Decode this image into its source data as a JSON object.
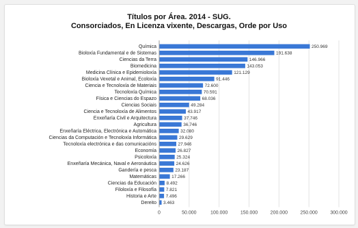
{
  "chart_data": {
    "type": "bar",
    "orientation": "horizontal",
    "title": "Títulos por Área. 2014 - SUG.",
    "subtitle": "Consorciados, En Licenza vixente, Descargas, Orde por Uso",
    "bar_color": "#3a78d6",
    "grid": true,
    "xlim": [
      0,
      300000
    ],
    "xticks": [
      "0",
      "50.000",
      "100.000",
      "150.000",
      "200.000",
      "250.000",
      "300.000"
    ],
    "categories": [
      "Química",
      "Bioloxía Fundamental e de Sistemas",
      "Ciencias da Terra",
      "Biomedicina",
      "Medicina Clínica e Epidemioloxía",
      "Bioloxía Vexetal e Animal, Ecoloxía",
      "Ciencia e Tecnoloxía de Materiais",
      "Tecnoloxía Química",
      "Física e Ciencias do Espazo",
      "Ciencias Sociais",
      "Ciencia e Tecnoloxía de Alimentos",
      "Enxeñaría Civil e Arquitectura",
      "Agricultura",
      "Enxeñaría Eléctrica, Electrónica e Automática",
      "Ciencias da Computación e Tecnoloxía Informática",
      "Tecnoloxía electrónica e das comunicacións",
      "Economía",
      "Psicoloxía",
      "Enxeñaría Mecánica, Naval e Aeronáutica",
      "Gandería e pesca",
      "Matemáticas",
      "Ciencias da Educación",
      "Filoloxía e Filosofía",
      "Historia e Arte",
      "Dereito"
    ],
    "values": [
      250969,
      191638,
      146966,
      143053,
      121129,
      91446,
      72600,
      70591,
      68036,
      49284,
      43917,
      37746,
      36746,
      32080,
      29629,
      27946,
      26827,
      25324,
      24626,
      23187,
      17266,
      8492,
      7821,
      7496,
      3463
    ],
    "value_labels": [
      "250.969",
      "191.638",
      "146.966",
      "143.053",
      "121.129",
      "91.446",
      "72.600",
      "70.591",
      "68.036",
      "49.284",
      "43.917",
      "37.746",
      "36.746",
      "32.080",
      "29.629",
      "27.946",
      "26.827",
      "25.324",
      "24.626",
      "23.187",
      "17.266",
      "8.492",
      "7.821",
      "7.496",
      "3.463"
    ]
  }
}
